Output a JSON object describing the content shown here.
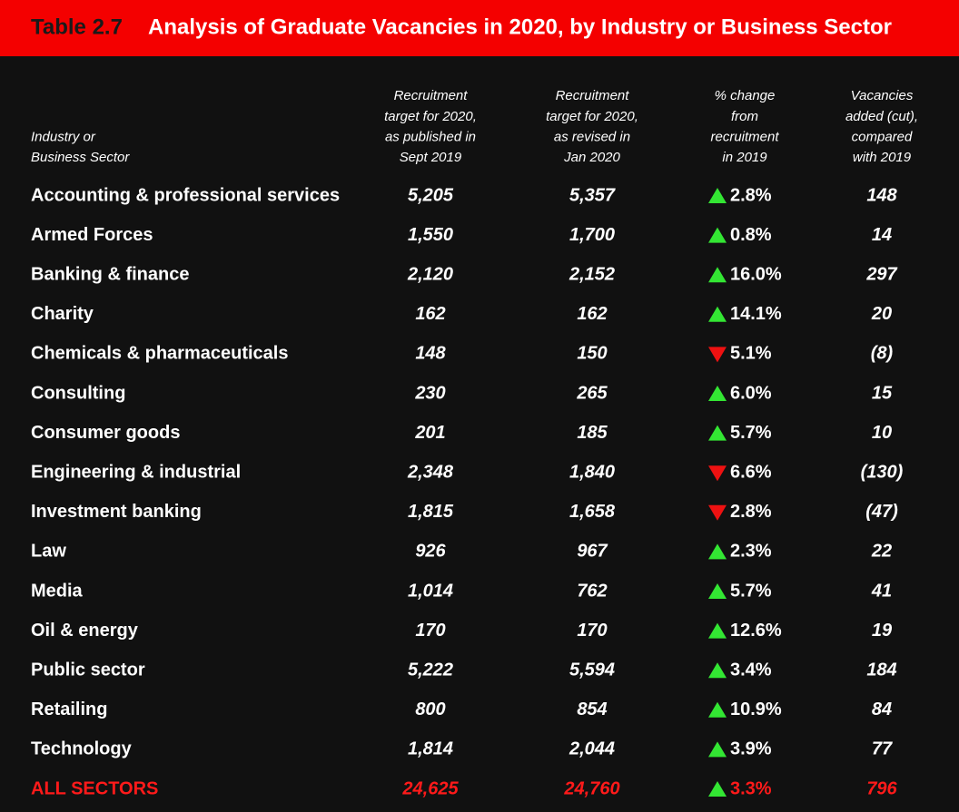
{
  "header": {
    "label": "Table 2.7",
    "title": "Analysis of Graduate Vacancies in 2020, by Industry or Business Sector"
  },
  "columns": [
    [
      "Industry or",
      "Business Sector"
    ],
    [
      "Recruitment",
      "target for 2020,",
      "as published in",
      "Sept 2019"
    ],
    [
      "Recruitment",
      "target for 2020,",
      "as revised in",
      "Jan 2020"
    ],
    [
      "% change",
      "from",
      "recruitment",
      "in 2019"
    ],
    [
      "Vacancies",
      "added (cut),",
      "compared",
      "with 2019"
    ]
  ],
  "rows": [
    {
      "sector": "Accounting & professional services",
      "published": "5,205",
      "revised": "5,357",
      "direction": "up",
      "change": "2.8%",
      "added": "148"
    },
    {
      "sector": "Armed Forces",
      "published": "1,550",
      "revised": "1,700",
      "direction": "up",
      "change": "0.8%",
      "added": "14"
    },
    {
      "sector": "Banking & finance",
      "published": "2,120",
      "revised": "2,152",
      "direction": "up",
      "change": "16.0%",
      "added": "297"
    },
    {
      "sector": "Charity",
      "published": "162",
      "revised": "162",
      "direction": "up",
      "change": "14.1%",
      "added": "20"
    },
    {
      "sector": "Chemicals & pharmaceuticals",
      "published": "148",
      "revised": "150",
      "direction": "down",
      "change": "5.1%",
      "added": "(8)"
    },
    {
      "sector": "Consulting",
      "published": "230",
      "revised": "265",
      "direction": "up",
      "change": "6.0%",
      "added": "15"
    },
    {
      "sector": "Consumer goods",
      "published": "201",
      "revised": "185",
      "direction": "up",
      "change": "5.7%",
      "added": "10"
    },
    {
      "sector": "Engineering & industrial",
      "published": "2,348",
      "revised": "1,840",
      "direction": "down",
      "change": "6.6%",
      "added": "(130)"
    },
    {
      "sector": "Investment banking",
      "published": "1,815",
      "revised": "1,658",
      "direction": "down",
      "change": "2.8%",
      "added": "(47)"
    },
    {
      "sector": "Law",
      "published": "926",
      "revised": "967",
      "direction": "up",
      "change": "2.3%",
      "added": "22"
    },
    {
      "sector": "Media",
      "published": "1,014",
      "revised": "762",
      "direction": "up",
      "change": "5.7%",
      "added": "41"
    },
    {
      "sector": "Oil & energy",
      "published": "170",
      "revised": "170",
      "direction": "up",
      "change": "12.6%",
      "added": "19"
    },
    {
      "sector": "Public sector",
      "published": "5,222",
      "revised": "5,594",
      "direction": "up",
      "change": "3.4%",
      "added": "184"
    },
    {
      "sector": "Retailing",
      "published": "800",
      "revised": "854",
      "direction": "up",
      "change": "10.9%",
      "added": "84"
    },
    {
      "sector": "Technology",
      "published": "1,814",
      "revised": "2,044",
      "direction": "up",
      "change": "3.9%",
      "added": "77"
    }
  ],
  "total": {
    "sector": "ALL SECTORS",
    "published": "24,625",
    "revised": "24,760",
    "direction": "up",
    "change": "3.3%",
    "added": "796"
  }
}
